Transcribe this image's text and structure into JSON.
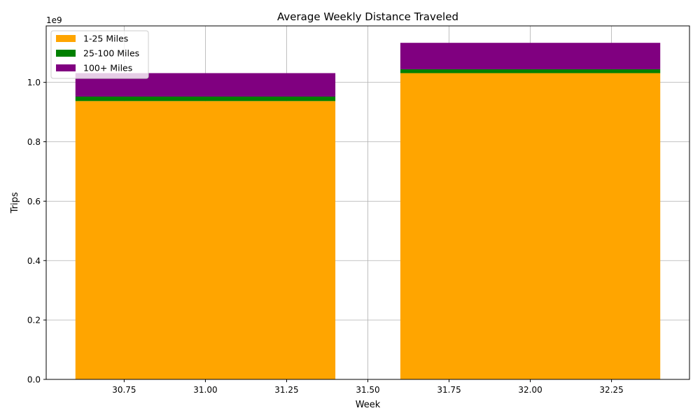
{
  "chart_data": {
    "type": "bar",
    "stacked": true,
    "title": "Average Weekly Distance Traveled",
    "xlabel": "Week",
    "ylabel": "Trips",
    "y_offset_label": "1e9",
    "x": [
      31,
      32
    ],
    "bar_width": 0.8,
    "xlim": [
      30.51,
      32.49
    ],
    "ylim": [
      0,
      1.19
    ],
    "y_scale": 1000000000,
    "x_ticks": [
      30.75,
      31.0,
      31.25,
      31.5,
      31.75,
      32.0,
      32.25
    ],
    "x_tick_labels": [
      "30.75",
      "31.00",
      "31.25",
      "31.50",
      "31.75",
      "32.00",
      "32.25"
    ],
    "y_ticks": [
      0,
      0.2,
      0.4,
      0.6,
      0.8,
      1.0
    ],
    "y_tick_labels": [
      "0.0",
      "0.2",
      "0.4",
      "0.6",
      "0.8",
      "1.0"
    ],
    "grid": true,
    "legend_position": "top-left",
    "series": [
      {
        "name": "1-25 Miles",
        "color": "#ffa500",
        "values": [
          0.937,
          1.031
        ]
      },
      {
        "name": "25-100 Miles",
        "color": "#008000",
        "values": [
          0.015,
          0.013
        ]
      },
      {
        "name": "100+ Miles",
        "color": "#800080",
        "values": [
          0.079,
          0.089
        ]
      }
    ]
  }
}
